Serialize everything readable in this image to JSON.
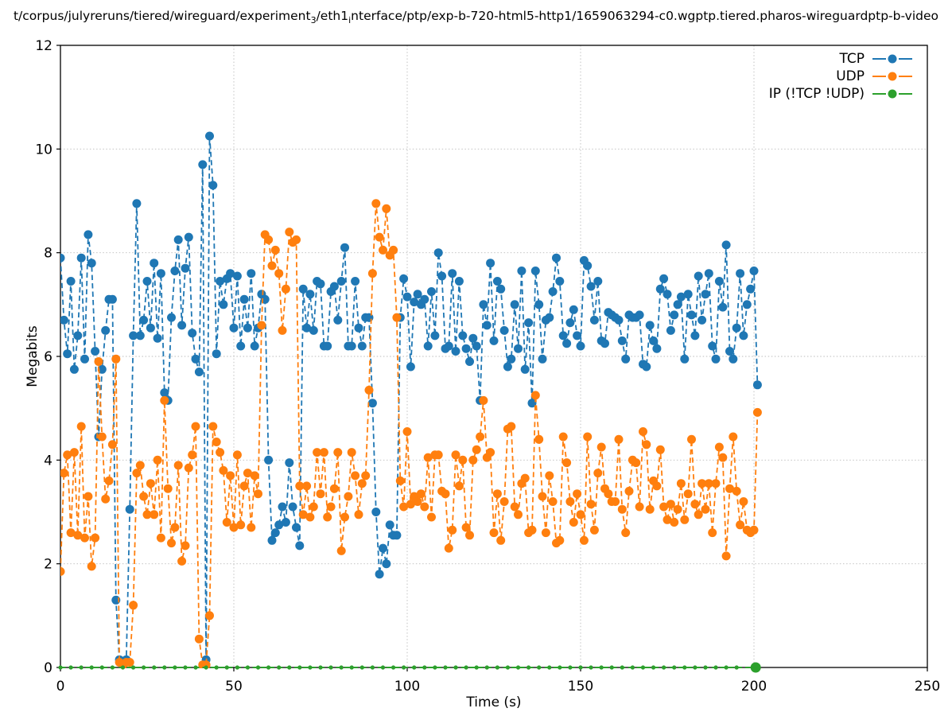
{
  "title": {
    "p1": "t/corpus/julyreruns/tiered/wireguard/experiment",
    "sub1": "3",
    "p2": "/eth1",
    "sub2": "i",
    "p3": "nterface/ptp/exp-b-720-html5-http1/1659063294-c0.wgptp.tiered.pharos-wireguardptp-b-video"
  },
  "legend": {
    "items": [
      {
        "label": "TCP",
        "color": "#1f77b4"
      },
      {
        "label": "UDP",
        "color": "#ff7f0e"
      },
      {
        "label": "IP (!TCP  !UDP)",
        "color": "#2ca02c"
      }
    ]
  },
  "axes": {
    "x_label": "Time (s)",
    "y_label": "Megabits",
    "x_ticks": [
      0,
      50,
      100,
      150,
      200,
      250
    ],
    "y_ticks": [
      0,
      2,
      4,
      6,
      8,
      10,
      12
    ],
    "x_range": [
      0,
      250
    ],
    "y_range": [
      0,
      12
    ],
    "grid": true,
    "grid_color": "#bbbbbb",
    "border_color": "#000000"
  },
  "chart_data": {
    "type": "line",
    "title": "t/corpus/julyreruns/tiered/wireguard/experiment_3/eth1_interface/ptp/exp-b-720-html5-http1/1659063294-c0.wgptp.tiered.pharos-wireguardptp-b-video",
    "xlabel": "Time (s)",
    "ylabel": "Megabits",
    "xlim": [
      0,
      250
    ],
    "ylim": [
      0,
      12
    ],
    "legend_position": "top-right",
    "style": "dashed line with circle markers, sampled every 1 s",
    "t_start": 0,
    "dt": 1,
    "series": [
      {
        "name": "TCP",
        "color": "#1f77b4",
        "values": [
          7.9,
          6.7,
          6.05,
          7.45,
          5.75,
          6.4,
          7.9,
          5.95,
          8.35,
          7.8,
          6.1,
          4.45,
          5.75,
          6.5,
          7.1,
          7.1,
          1.3,
          0.15,
          0.1,
          0.15,
          3.05,
          6.4,
          8.95,
          6.4,
          6.7,
          7.45,
          6.55,
          7.8,
          6.35,
          7.6,
          5.3,
          5.15,
          6.75,
          7.65,
          8.25,
          6.6,
          7.7,
          8.3,
          6.45,
          5.95,
          5.7,
          9.7,
          0.15,
          10.25,
          9.3,
          6.05,
          7.45,
          7.0,
          7.5,
          7.6,
          6.55,
          7.55,
          6.2,
          7.1,
          6.55,
          7.6,
          6.2,
          6.55,
          7.2,
          7.1,
          4.0,
          2.45,
          2.6,
          2.75,
          3.1,
          2.8,
          3.95,
          3.1,
          2.7,
          2.35,
          7.3,
          6.55,
          7.2,
          6.5,
          7.45,
          7.4,
          6.2,
          6.2,
          7.25,
          7.35,
          6.7,
          7.45,
          8.1,
          6.2,
          6.2,
          7.45,
          6.55,
          6.2,
          6.75,
          6.75,
          5.1,
          3.0,
          1.8,
          2.3,
          2.0,
          2.75,
          2.55,
          2.55,
          6.75,
          7.5,
          7.15,
          5.8,
          7.05,
          7.2,
          7.0,
          7.1,
          6.2,
          7.25,
          6.4,
          8.0,
          7.55,
          6.15,
          6.2,
          7.6,
          6.1,
          7.45,
          6.4,
          6.15,
          5.9,
          6.35,
          6.2,
          5.15,
          7.0,
          6.6,
          7.8,
          6.3,
          7.45,
          7.3,
          6.5,
          5.8,
          5.95,
          7.0,
          6.15,
          7.65,
          5.75,
          6.65,
          5.1,
          7.65,
          7.0,
          5.95,
          6.7,
          6.75,
          7.25,
          7.9,
          7.45,
          6.4,
          6.25,
          6.65,
          6.9,
          6.4,
          6.2,
          7.85,
          7.75,
          7.35,
          6.7,
          7.45,
          6.3,
          6.25,
          6.85,
          6.8,
          6.75,
          6.7,
          6.3,
          5.95,
          6.8,
          6.75,
          6.75,
          6.8,
          5.85,
          5.8,
          6.6,
          6.3,
          6.15,
          7.3,
          7.5,
          7.2,
          6.5,
          6.8,
          7.0,
          7.15,
          5.95,
          7.2,
          6.8,
          6.4,
          7.55,
          6.7,
          7.2,
          7.6,
          6.2,
          5.95,
          7.45,
          6.95,
          8.15,
          6.1,
          5.95,
          6.55,
          7.6,
          6.4,
          7.0,
          7.3,
          7.65,
          5.45
        ]
      },
      {
        "name": "UDP",
        "color": "#ff7f0e",
        "values": [
          1.85,
          3.75,
          4.1,
          2.6,
          4.15,
          2.55,
          4.65,
          2.5,
          3.3,
          1.95,
          2.5,
          5.9,
          4.45,
          3.25,
          3.6,
          4.3,
          5.95,
          0.1,
          0.05,
          0.1,
          0.1,
          1.2,
          3.75,
          3.9,
          3.3,
          2.95,
          3.55,
          2.95,
          4.0,
          2.5,
          5.15,
          3.45,
          2.4,
          2.7,
          3.9,
          2.05,
          2.35,
          3.85,
          4.1,
          4.65,
          0.55,
          0.05,
          0.05,
          1.0,
          4.65,
          4.35,
          4.15,
          3.8,
          2.8,
          3.7,
          2.7,
          4.1,
          2.75,
          3.5,
          3.75,
          2.7,
          3.7,
          3.35,
          6.6,
          8.35,
          8.25,
          7.75,
          8.05,
          7.6,
          6.5,
          7.3,
          8.4,
          8.2,
          8.25,
          3.5,
          2.95,
          3.5,
          2.9,
          3.1,
          4.15,
          3.35,
          4.15,
          2.9,
          3.1,
          3.45,
          4.15,
          2.25,
          2.9,
          3.3,
          4.15,
          3.7,
          2.95,
          3.55,
          3.7,
          5.35,
          7.6,
          8.95,
          8.3,
          8.05,
          8.85,
          7.95,
          8.05,
          6.75,
          3.6,
          3.1,
          4.55,
          3.15,
          3.3,
          3.2,
          3.35,
          3.1,
          4.05,
          2.9,
          4.1,
          4.1,
          3.4,
          3.35,
          2.3,
          2.65,
          4.1,
          3.5,
          4.0,
          2.7,
          2.55,
          4.0,
          4.2,
          4.45,
          5.15,
          4.05,
          4.15,
          2.6,
          3.35,
          2.45,
          3.2,
          4.6,
          4.65,
          3.1,
          2.95,
          3.55,
          3.65,
          2.6,
          2.65,
          5.25,
          4.4,
          3.3,
          2.6,
          3.7,
          3.2,
          2.4,
          2.45,
          4.45,
          3.95,
          3.2,
          2.8,
          3.35,
          2.95,
          2.45,
          4.45,
          3.15,
          2.65,
          3.75,
          4.25,
          3.45,
          3.35,
          3.2,
          3.2,
          4.4,
          3.05,
          2.6,
          3.4,
          4.0,
          3.95,
          3.1,
          4.55,
          4.3,
          3.05,
          3.6,
          3.5,
          4.2,
          3.1,
          2.85,
          3.15,
          2.8,
          3.05,
          3.55,
          2.85,
          3.35,
          4.4,
          3.15,
          2.95,
          3.55,
          3.05,
          3.55,
          2.6,
          3.55,
          4.25,
          4.05,
          2.15,
          3.45,
          4.45,
          3.4,
          2.75,
          3.2,
          2.65,
          2.6,
          2.65,
          4.92
        ]
      },
      {
        "name": "IP (!TCP  !UDP)",
        "color": "#2ca02c",
        "constant_value": 0,
        "t_start": 0,
        "t_end": 200,
        "end_marker_t": 200.5,
        "note": "flat at 0 Megabits for the whole run; single prominent marker at t=200"
      }
    ]
  }
}
